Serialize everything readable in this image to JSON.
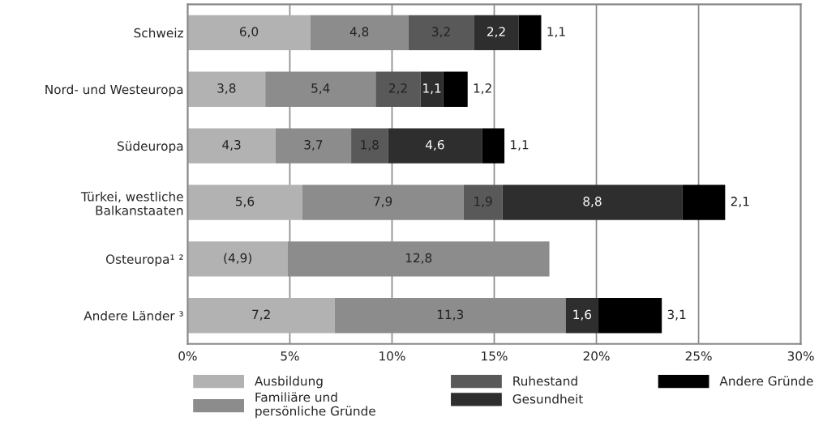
{
  "chart_data": {
    "type": "bar",
    "orientation": "horizontal",
    "stacked": true,
    "categories": [
      "Schweiz",
      "Nord- und Westeuropa",
      "Südeuropa",
      "Türkei, westliche\nBalkanstaaten",
      "Osteuropa¹ ²",
      "Andere Länder ³"
    ],
    "series": [
      {
        "name": "Ausbildung",
        "color": "#b2b2b2",
        "values": [
          6.0,
          3.8,
          4.3,
          5.6,
          4.9,
          7.2
        ],
        "value_labels": [
          "6,0",
          "3,8",
          "4,3",
          "5,6",
          "(4,9)",
          "7,2"
        ]
      },
      {
        "name": "Familiäre und\npersönliche Gründe",
        "color": "#8c8c8c",
        "values": [
          4.8,
          5.4,
          3.7,
          7.9,
          12.8,
          11.3
        ],
        "value_labels": [
          "4,8",
          "5,4",
          "3,7",
          "7,9",
          "12,8",
          "11,3"
        ]
      },
      {
        "name": "Ruhestand",
        "color": "#595959",
        "values": [
          3.2,
          2.2,
          1.8,
          1.9,
          null,
          null
        ],
        "value_labels": [
          "3,2",
          "2,2",
          "1,8",
          "1,9",
          null,
          null
        ]
      },
      {
        "name": "Gesundheit",
        "color": "#2e2e2e",
        "values": [
          2.2,
          1.1,
          4.6,
          8.8,
          null,
          1.6
        ],
        "value_labels": [
          "2,2",
          "1,1",
          "4,6",
          "8,8",
          null,
          "1,6"
        ]
      },
      {
        "name": "Andere Gründe",
        "color": "#000000",
        "values": [
          1.1,
          1.2,
          1.1,
          2.1,
          null,
          3.1
        ],
        "value_labels": [
          "1,1",
          "1,2",
          "1,1",
          "2,1",
          null,
          "3,1"
        ]
      }
    ],
    "xlim": [
      0,
      30
    ],
    "xticks": [
      {
        "value": 0,
        "label": "0%"
      },
      {
        "value": 5,
        "label": "5%"
      },
      {
        "value": 10,
        "label": "10%"
      },
      {
        "value": 15,
        "label": "15%"
      },
      {
        "value": 20,
        "label": "20%"
      },
      {
        "value": 25,
        "label": "25%"
      },
      {
        "value": 30,
        "label": "30%"
      }
    ],
    "grid": "x",
    "legend": "bottom"
  }
}
